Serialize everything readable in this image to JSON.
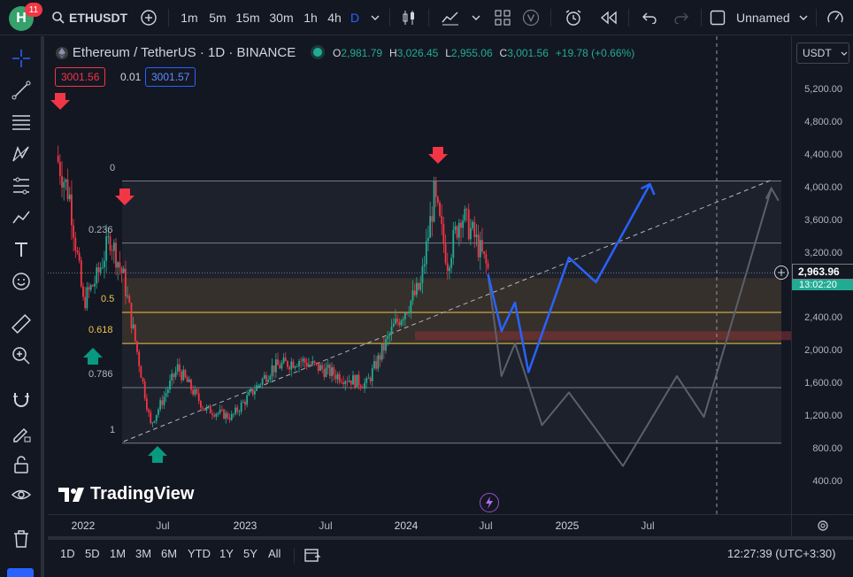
{
  "topbar": {
    "avatar_letter": "H",
    "notifications": "11",
    "symbol": "ETHUSDT",
    "intervals": [
      "1m",
      "5m",
      "15m",
      "30m",
      "1h",
      "4h",
      "D"
    ],
    "active_interval": "D",
    "layout_name": "Unnamed"
  },
  "legend": {
    "title": "Ethereum / TetherUS · 1D · BINANCE",
    "open_label": "O",
    "open": "2,981.79",
    "high_label": "H",
    "high": "3,026.45",
    "low_label": "L",
    "low": "2,955.06",
    "close_label": "C",
    "close": "3,001.56",
    "change": "+19.78 (+0.66%)",
    "sell_price": "3001.56",
    "spread": "0.01",
    "buy_price": "3001.57"
  },
  "currency": "USDT",
  "fib_labels": [
    "0",
    "0.236",
    "0.5",
    "0.618",
    "0.786",
    "1"
  ],
  "price_ticks": [
    "5,200.00",
    "4,800.00",
    "4,400.00",
    "4,000.00",
    "3,600.00",
    "3,200.00",
    "2,800.00",
    "2,400.00",
    "2,000.00",
    "1,600.00",
    "1,200.00",
    "800.00",
    "400.00"
  ],
  "current_price": "2,963.96",
  "countdown": "13:02:20",
  "time_labels": [
    "2022",
    "Jul",
    "2023",
    "Jul",
    "2024",
    "Jul",
    "2025",
    "Jul"
  ],
  "watermark": "TradingView",
  "bottom": {
    "ranges": [
      "1D",
      "5D",
      "1M",
      "3M",
      "6M",
      "YTD",
      "1Y",
      "5Y",
      "All"
    ],
    "clock": "12:27:39 (UTC+3:30)"
  },
  "colors": {
    "bg": "#131722",
    "up": "#22ab94",
    "down": "#f23645",
    "accent": "#2962ff",
    "fib_line": "#787b86",
    "fib_gold": "#f0c44b",
    "zone": "#2a2418"
  },
  "chart_data": {
    "type": "candlestick",
    "symbol": "ETHUSDT",
    "interval": "1D",
    "ylim": [
      200,
      5600
    ],
    "price_path": [
      {
        "t": "2021-11",
        "p": 4400
      },
      {
        "t": "2021-12",
        "p": 3900
      },
      {
        "t": "2022-01",
        "p": 2600
      },
      {
        "t": "2022-02",
        "p": 2900
      },
      {
        "t": "2022-03",
        "p": 3400
      },
      {
        "t": "2022-04",
        "p": 2900
      },
      {
        "t": "2022-05",
        "p": 2000
      },
      {
        "t": "2022-06",
        "p": 1100
      },
      {
        "t": "2022-08",
        "p": 1800
      },
      {
        "t": "2022-10",
        "p": 1300
      },
      {
        "t": "2022-12",
        "p": 1200
      },
      {
        "t": "2023-03",
        "p": 1800
      },
      {
        "t": "2023-05",
        "p": 1900
      },
      {
        "t": "2023-08",
        "p": 1700
      },
      {
        "t": "2023-10",
        "p": 1600
      },
      {
        "t": "2023-12",
        "p": 2300
      },
      {
        "t": "2024-02",
        "p": 2800
      },
      {
        "t": "2024-03",
        "p": 3900
      },
      {
        "t": "2024-04",
        "p": 3100
      },
      {
        "t": "2024-05",
        "p": 3700
      },
      {
        "t": "2024-06",
        "p": 3400
      },
      {
        "t": "2024-07",
        "p": 3000
      }
    ],
    "fib_levels": [
      {
        "ratio": "0",
        "price": 4090
      },
      {
        "ratio": "0.236",
        "price": 3330
      },
      {
        "ratio": "0.5",
        "price": 2480
      },
      {
        "ratio": "0.618",
        "price": 2100
      },
      {
        "ratio": "0.786",
        "price": 1560
      },
      {
        "ratio": "1",
        "price": 880
      }
    ],
    "projection_blue": [
      {
        "t": "2024-07",
        "p": 2950
      },
      {
        "t": "2024-08",
        "p": 2250
      },
      {
        "t": "2024-09",
        "p": 2600
      },
      {
        "t": "2024-10",
        "p": 1750
      },
      {
        "t": "2025-01",
        "p": 3150
      },
      {
        "t": "2025-03",
        "p": 2850
      },
      {
        "t": "2025-07",
        "p": 4050
      }
    ],
    "projection_gray": [
      {
        "t": "2024-07",
        "p": 2950
      },
      {
        "t": "2024-08",
        "p": 1700
      },
      {
        "t": "2024-09",
        "p": 2100
      },
      {
        "t": "2024-11",
        "p": 1100
      },
      {
        "t": "2025-01",
        "p": 1500
      },
      {
        "t": "2025-05",
        "p": 600
      },
      {
        "t": "2025-09",
        "p": 1700
      },
      {
        "t": "2025-11",
        "p": 1200
      },
      {
        "t": "2026-04",
        "p": 4000
      }
    ],
    "trendline": [
      {
        "t": "2022-04",
        "p": 900
      },
      {
        "t": "2026-04",
        "p": 4100
      }
    ]
  }
}
